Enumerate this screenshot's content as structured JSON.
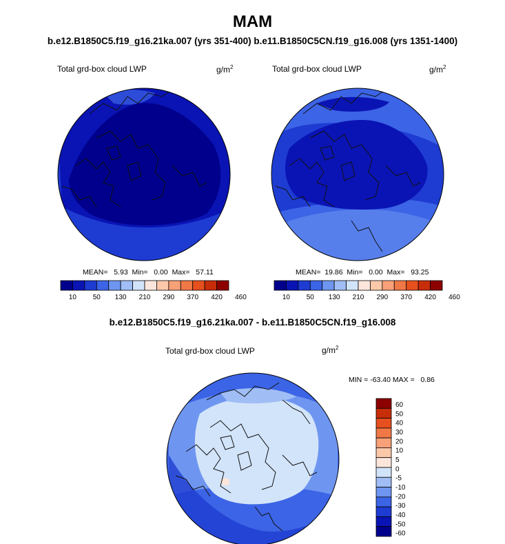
{
  "season": "MAM",
  "case_title": "b.e12.B1850C5.f19_g16.21ka.007 (yrs 351-400)  b.e11.B1850C5CN.f19_g16.008 (yrs 1351-1400)",
  "diff_title": "b.e12.B1850C5.f19_g16.21ka.007 - b.e11.B1850C5CN.f19_g16.008",
  "panels": [
    {
      "variable": "Total grd-box cloud LWP",
      "units": "g/m",
      "units_exp": "2",
      "stats": "MEAN=   5.93  Min=   0.00  Max=   57.11"
    },
    {
      "variable": "Total grd-box cloud LWP",
      "units": "g/m",
      "units_exp": "2",
      "stats": "MEAN=  19.86  Min=   0.00  Max=   93.25"
    },
    {
      "variable": "Total grd-box cloud LWP",
      "units": "g/m",
      "units_exp": "2",
      "stats": "MIN = -63.40 MAX =   0.86"
    }
  ],
  "colorbar_abs": {
    "colors": [
      "#00008c",
      "#0a14b4",
      "#1e3cd2",
      "#3c64e6",
      "#6e96f0",
      "#a0bef5",
      "#d2e4fa",
      "#fce6dc",
      "#fcc8aa",
      "#f8a078",
      "#f07846",
      "#e6501e",
      "#c82d0a",
      "#8c0000"
    ],
    "labels": [
      "10",
      "50",
      "130",
      "210",
      "290",
      "370",
      "420",
      "460"
    ]
  },
  "colorbar_diff": {
    "colors": [
      "#8c0000",
      "#c82d0a",
      "#e6501e",
      "#f07846",
      "#f8a078",
      "#fcc8aa",
      "#fce6dc",
      "#d2e4fa",
      "#a0bef5",
      "#6e96f0",
      "#3c64e6",
      "#1e3cd2",
      "#0a14b4",
      "#00008c"
    ],
    "labels": [
      "60",
      "50",
      "40",
      "30",
      "20",
      "10",
      "5",
      "0",
      "-5",
      "-10",
      "-20",
      "-30",
      "-40",
      "-50",
      "-60"
    ]
  }
}
